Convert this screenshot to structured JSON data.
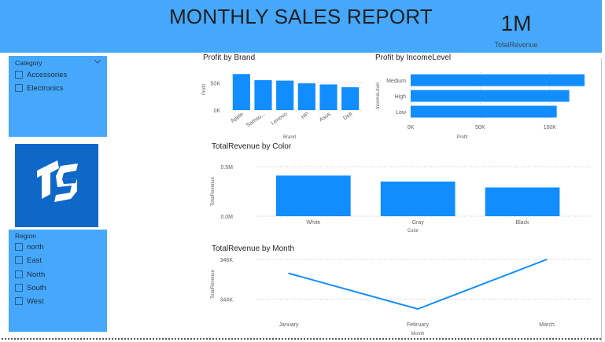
{
  "header": {
    "title": "MONTHLY SALES REPORT"
  },
  "kpi": {
    "value": "1M",
    "label": "TotalRevenue"
  },
  "colors": {
    "accent": "#45a8fb",
    "bar": "#118dff",
    "logo_bg": "#0f68c7"
  },
  "logo": {
    "icon": "ts-logo-icon"
  },
  "slicers": {
    "category": {
      "title": "Category",
      "options": [
        "Accessories",
        "Electronics"
      ]
    },
    "region": {
      "title": "Region",
      "options": [
        "north",
        "East",
        "North",
        "South",
        "West"
      ]
    }
  },
  "charts": {
    "brand": {
      "title": "Profit by Brand",
      "ylabel": "Profit",
      "xlabel": "Brand",
      "y_ticks": [
        "50K",
        "0K"
      ]
    },
    "income": {
      "title": "Profit by IncomeLevel",
      "ylabel": "IncomeLevel",
      "xlabel": "Profit",
      "x_ticks": [
        "0K",
        "50K",
        "100K"
      ]
    },
    "color": {
      "title": "TotalRevenue by Color",
      "ylabel": "TotalRevenue",
      "xlabel": "Color",
      "y_ticks": [
        "0.5M",
        "0.0M"
      ]
    },
    "month": {
      "title": "TotalRevenue by Month",
      "ylabel": "TotalRevenue",
      "xlabel": "Month",
      "y_ticks": [
        "346K",
        "344K"
      ]
    }
  },
  "chart_data": [
    {
      "type": "bar",
      "title": "Profit by Brand",
      "xlabel": "Brand",
      "ylabel": "Profit",
      "categories": [
        "Apple",
        "Samsu...",
        "Lenovo",
        "HP",
        "Asus",
        "Dell"
      ],
      "values": [
        66,
        55,
        54,
        49,
        47,
        42
      ],
      "unit": "K",
      "ylim": [
        0,
        75
      ],
      "y_ticks": [
        0,
        50
      ],
      "grid": true
    },
    {
      "type": "bar",
      "orientation": "horizontal",
      "title": "Profit by IncomeLevel",
      "xlabel": "Profit",
      "ylabel": "IncomeLevel",
      "categories": [
        "Medium",
        "High",
        "Low"
      ],
      "values": [
        125,
        114,
        105
      ],
      "unit": "K",
      "xlim": [
        0,
        125
      ],
      "x_ticks": [
        0,
        50,
        100
      ],
      "grid": true
    },
    {
      "type": "bar",
      "title": "TotalRevenue by Color",
      "xlabel": "Color",
      "ylabel": "TotalRevenue",
      "categories": [
        "White",
        "Gray",
        "Black"
      ],
      "values": [
        0.41,
        0.35,
        0.29
      ],
      "unit": "M",
      "ylim": [
        0,
        0.5
      ],
      "y_ticks": [
        0,
        0.5
      ],
      "grid": true
    },
    {
      "type": "line",
      "title": "TotalRevenue by Month",
      "xlabel": "Month",
      "ylabel": "TotalRevenue",
      "categories": [
        "January",
        "February",
        "March"
      ],
      "values": [
        345.3,
        343.5,
        346.0
      ],
      "unit": "K",
      "ylim": [
        343.5,
        346.0
      ],
      "y_ticks": [
        344,
        346
      ],
      "grid": true
    }
  ]
}
